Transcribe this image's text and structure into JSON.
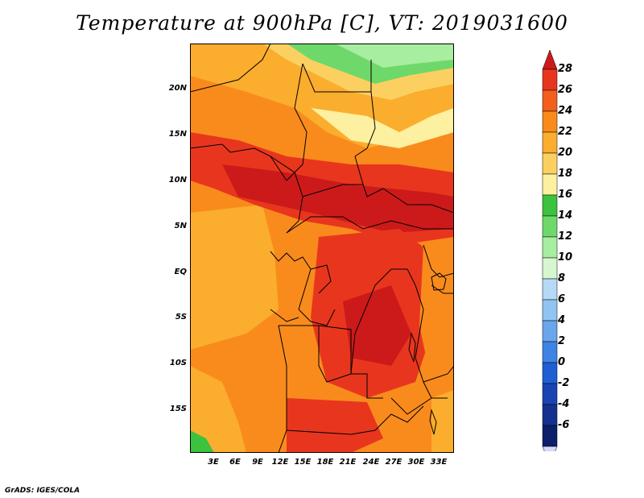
{
  "title": "Temperature at 900hPa [C], VT: 2019031600",
  "credit": "GrADS: IGES/COLA",
  "lat_labels": [
    "20N",
    "15N",
    "10N",
    "5N",
    "EQ",
    "5S",
    "10S",
    "15S"
  ],
  "lon_labels": [
    "3E",
    "6E",
    "9E",
    "12E",
    "15E",
    "18E",
    "21E",
    "24E",
    "27E",
    "30E",
    "33E"
  ],
  "colorbar": {
    "labels": [
      "28",
      "26",
      "24",
      "22",
      "20",
      "18",
      "16",
      "14",
      "12",
      "10",
      "8",
      "6",
      "4",
      "2",
      "0",
      "-2",
      "-4",
      "-6"
    ],
    "colors": [
      "#e8361e",
      "#f35e1c",
      "#f98b1c",
      "#fbad2e",
      "#fcd060",
      "#fdf0a0",
      "#3bc23e",
      "#6fd86a",
      "#a7eea0",
      "#d6f7d0",
      "#b5d9f6",
      "#91c4f2",
      "#6aa6ec",
      "#3e84e4",
      "#1f5fd4",
      "#1944b3",
      "#14318f",
      "#0b1f6a"
    ],
    "top_color": "#cc1a1a",
    "bottom_color": "#d6d6f5"
  }
}
